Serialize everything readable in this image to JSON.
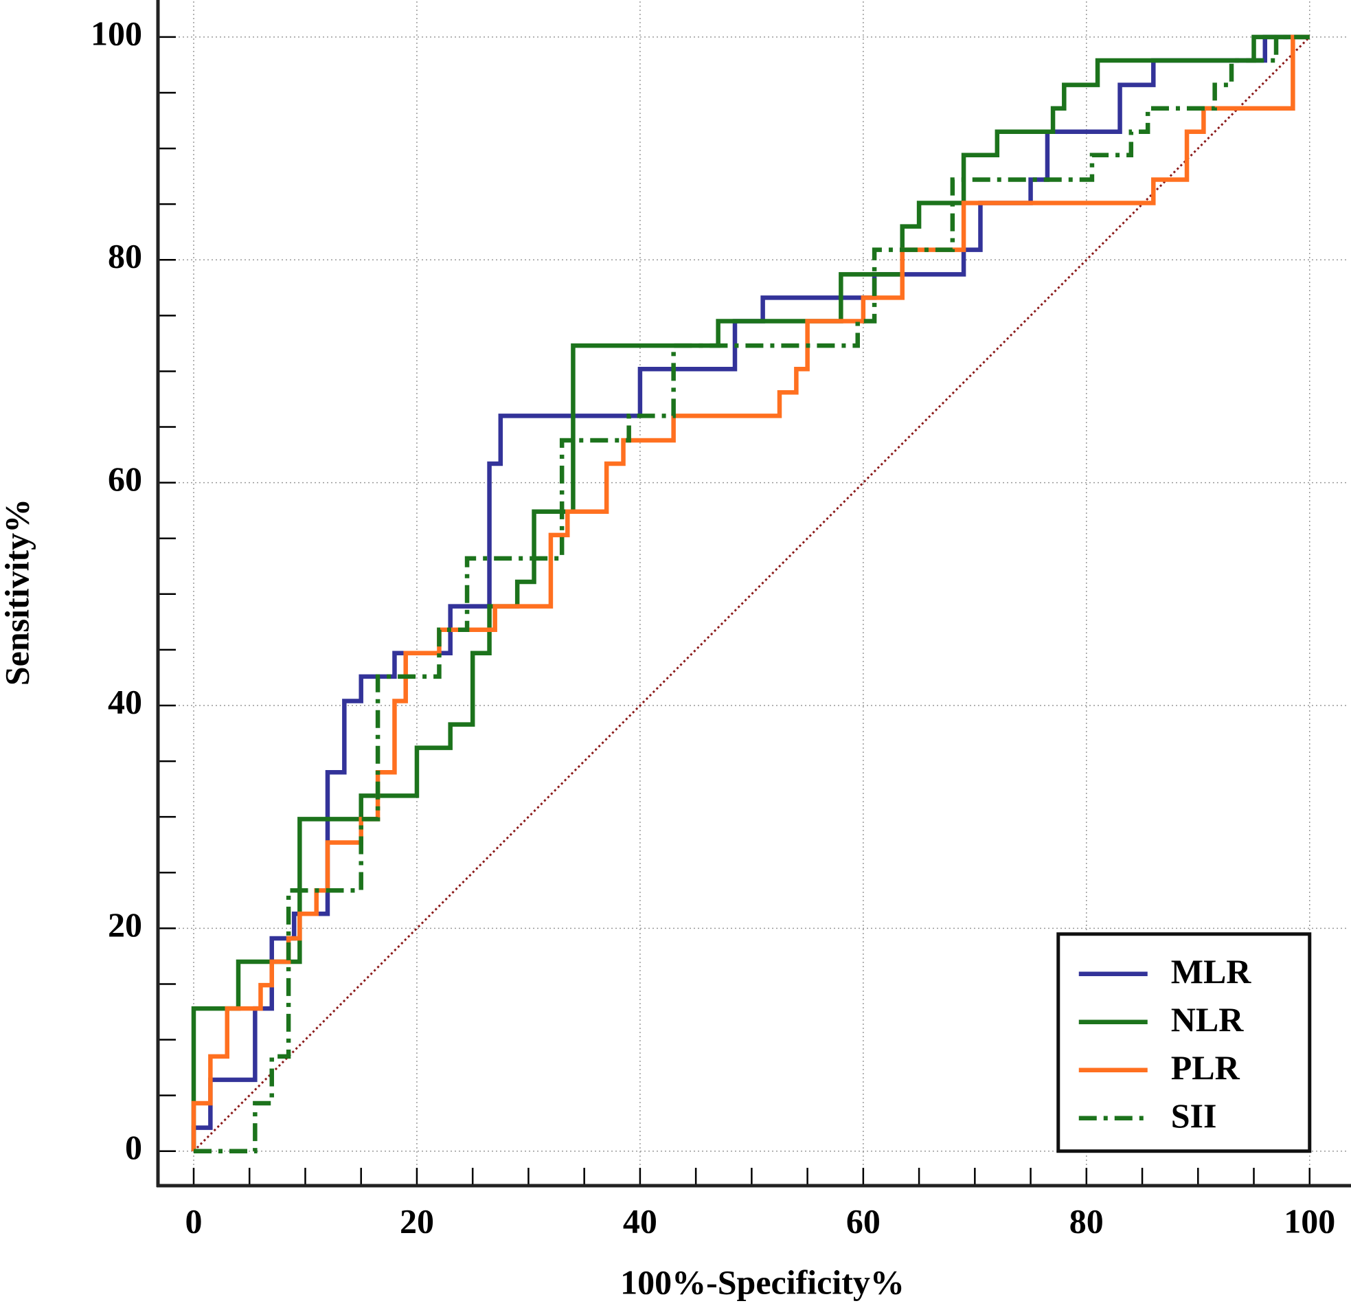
{
  "chart_data": {
    "type": "line",
    "x_label": "100%-Specificity%",
    "y_label": "Sensitivity%",
    "xlim": [
      -3.2,
      103.4
    ],
    "ylim": [
      -3.1,
      103.2
    ],
    "xticks": [
      0,
      20,
      40,
      60,
      80,
      100
    ],
    "yticks": [
      0,
      20,
      40,
      60,
      80,
      100
    ],
    "xticks_minor": [
      5,
      10,
      15,
      25,
      30,
      35,
      45,
      50,
      55,
      65,
      70,
      75,
      85,
      90,
      95
    ],
    "yticks_minor": [
      5,
      10,
      15,
      25,
      30,
      35,
      45,
      50,
      55,
      65,
      70,
      75,
      85,
      90,
      95
    ],
    "grid": true,
    "legend": "lower right",
    "reference_line": {
      "x": [
        0,
        100
      ],
      "values": [
        0,
        100
      ],
      "color": "#8b1a1a"
    },
    "series": [
      {
        "name": "MLR",
        "color": "#333399",
        "linestyle": "solid",
        "x": [
          0,
          0,
          1.5,
          1.5,
          5.5,
          5.5,
          7,
          7,
          9,
          9,
          12,
          12,
          13.5,
          13.5,
          15,
          15,
          18,
          18,
          23,
          23,
          26.5,
          26.5,
          27.5,
          27.5,
          40,
          40,
          48.5,
          48.5,
          51,
          51,
          61,
          61,
          69,
          69,
          70.5,
          70.5,
          75,
          75,
          76.5,
          76.5,
          83,
          83,
          86,
          86,
          96,
          96,
          100
        ],
        "values": [
          0,
          2.1,
          2.1,
          6.4,
          6.4,
          12.8,
          12.8,
          19.1,
          19.1,
          21.3,
          21.3,
          34,
          34,
          40.4,
          40.4,
          42.6,
          42.6,
          44.7,
          44.7,
          48.9,
          48.9,
          61.7,
          61.7,
          66,
          66,
          70.2,
          70.2,
          74.5,
          74.5,
          76.6,
          76.6,
          78.7,
          78.7,
          80.9,
          80.9,
          85.1,
          85.1,
          87.2,
          87.2,
          91.5,
          91.5,
          95.7,
          95.7,
          97.9,
          97.9,
          100,
          100
        ]
      },
      {
        "name": "NLR",
        "color": "#1c731c",
        "linestyle": "solid",
        "x": [
          0,
          0,
          4,
          4,
          9.5,
          9.5,
          15,
          15,
          20,
          20,
          23,
          23,
          25,
          25,
          26.5,
          26.5,
          29,
          29,
          30.5,
          30.5,
          34,
          34,
          47,
          47,
          58,
          58,
          63.5,
          63.5,
          65,
          65,
          69,
          69,
          72,
          72,
          77,
          77,
          78,
          78,
          81,
          81,
          95,
          95,
          100
        ],
        "values": [
          0,
          12.8,
          12.8,
          17,
          17,
          29.8,
          29.8,
          31.9,
          31.9,
          36.2,
          36.2,
          38.3,
          38.3,
          44.7,
          44.7,
          48.9,
          48.9,
          51.1,
          51.1,
          57.4,
          57.4,
          72.3,
          72.3,
          74.5,
          74.5,
          78.7,
          78.7,
          83,
          83,
          85.1,
          85.1,
          89.4,
          89.4,
          91.5,
          91.5,
          93.6,
          93.6,
          95.7,
          95.7,
          97.9,
          97.9,
          100,
          100
        ]
      },
      {
        "name": "PLR",
        "color": "#ff7020",
        "linestyle": "solid",
        "x": [
          0,
          0,
          1.5,
          1.5,
          3,
          3,
          6,
          6,
          7,
          7,
          8.5,
          8.5,
          9.5,
          9.5,
          11,
          11,
          12,
          12,
          15,
          15,
          16.5,
          16.5,
          18,
          18,
          19,
          19,
          22,
          22,
          27,
          27,
          32,
          32,
          33.5,
          33.5,
          37,
          37,
          38.5,
          38.5,
          43,
          43,
          52.5,
          52.5,
          54,
          54,
          55,
          55,
          60,
          60,
          63.5,
          63.5,
          69,
          69,
          86,
          86,
          89,
          89,
          90.5,
          90.5,
          98.5,
          98.5,
          100
        ],
        "values": [
          0,
          4.3,
          4.3,
          8.5,
          8.5,
          12.8,
          12.8,
          14.9,
          14.9,
          17,
          17,
          19.1,
          19.1,
          21.3,
          21.3,
          23.4,
          23.4,
          27.7,
          27.7,
          29.8,
          29.8,
          34,
          34,
          40.4,
          40.4,
          44.7,
          44.7,
          46.8,
          46.8,
          48.9,
          48.9,
          55.3,
          55.3,
          57.4,
          57.4,
          61.7,
          61.7,
          63.8,
          63.8,
          66,
          66,
          68.1,
          68.1,
          70.2,
          70.2,
          74.5,
          74.5,
          76.6,
          76.6,
          80.9,
          80.9,
          85.1,
          85.1,
          87.2,
          87.2,
          91.5,
          91.5,
          93.6,
          93.6,
          100,
          100
        ]
      },
      {
        "name": "SII",
        "color": "#1c731c",
        "linestyle": "dashdot",
        "x": [
          0,
          5.5,
          5.5,
          7,
          7,
          8.5,
          8.5,
          15,
          15,
          16.5,
          16.5,
          22,
          22,
          24.5,
          24.5,
          33,
          33,
          39,
          39,
          43,
          43,
          59.5,
          59.5,
          61,
          61,
          68,
          68,
          80.5,
          80.5,
          84,
          84,
          85.5,
          85.5,
          91.5,
          91.5,
          93,
          93,
          97,
          97,
          100
        ],
        "values": [
          0,
          0,
          4.3,
          4.3,
          8.5,
          8.5,
          23.4,
          23.4,
          29.8,
          29.8,
          42.6,
          42.6,
          46.8,
          46.8,
          53.2,
          53.2,
          63.8,
          63.8,
          66,
          66,
          72.3,
          72.3,
          74.5,
          74.5,
          80.9,
          80.9,
          87.2,
          87.2,
          89.4,
          89.4,
          91.5,
          91.5,
          93.6,
          93.6,
          95.7,
          95.7,
          97.9,
          97.9,
          100,
          100
        ]
      }
    ]
  }
}
